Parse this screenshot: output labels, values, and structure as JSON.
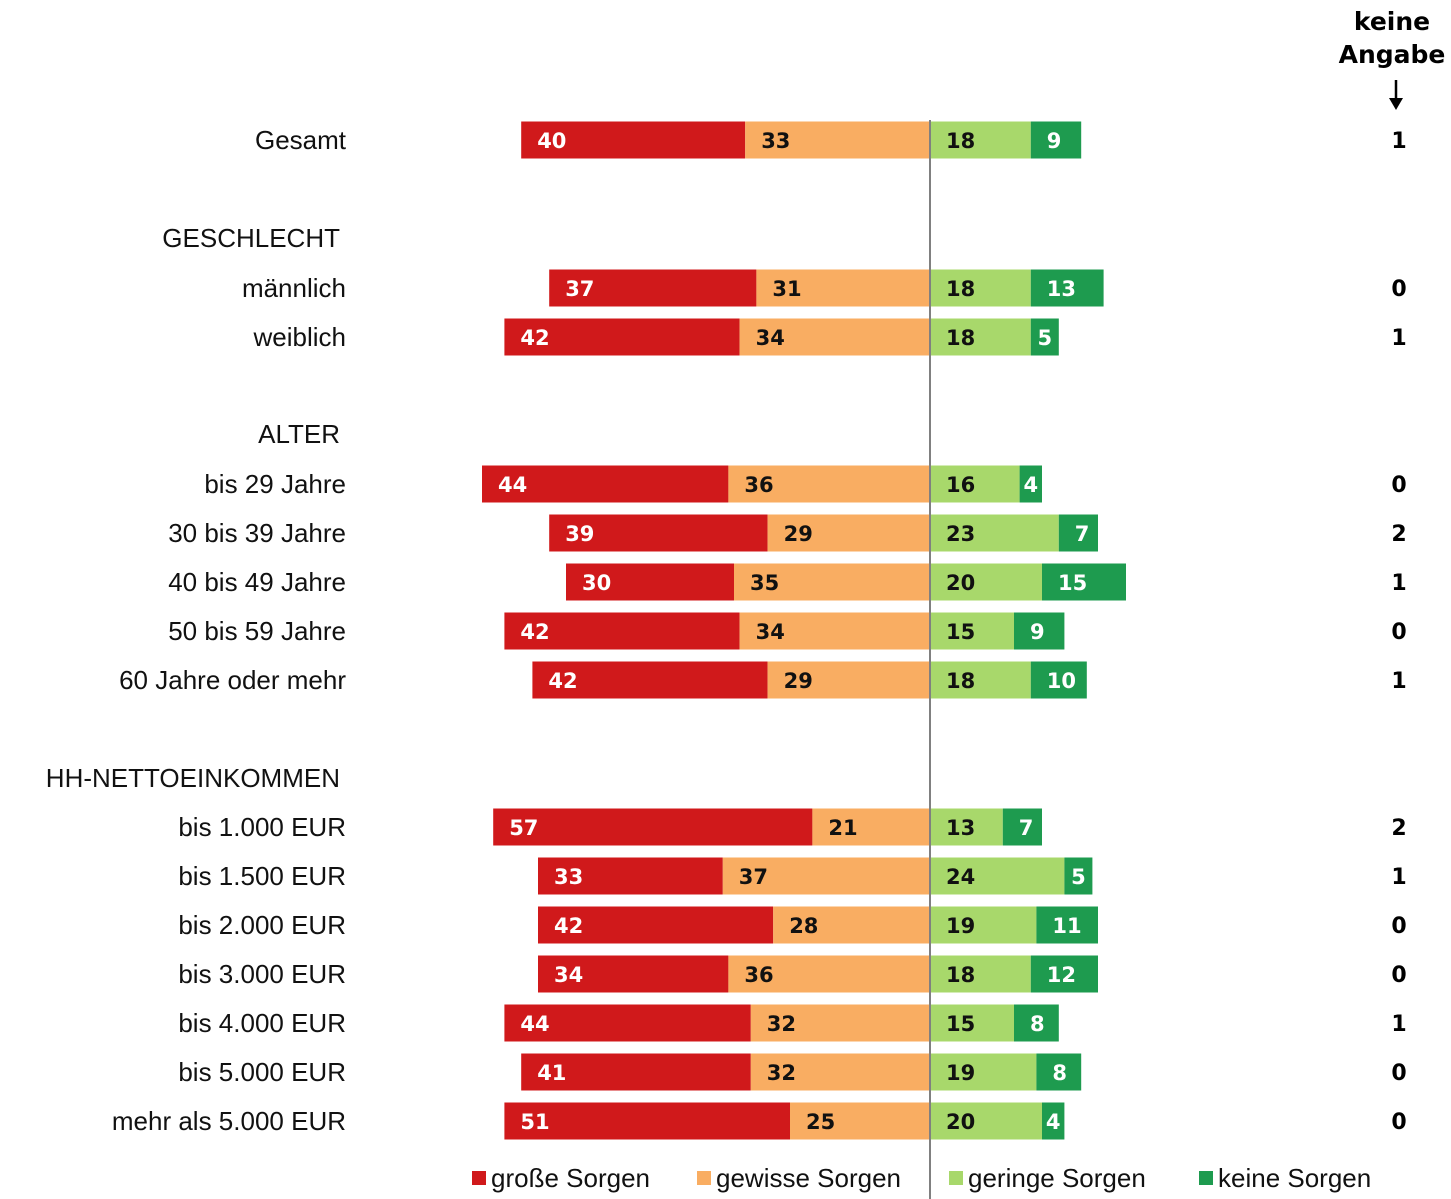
{
  "chart_data": {
    "type": "bar",
    "orientation": "horizontal",
    "stacked": true,
    "diverging": true,
    "na_header": [
      "keine",
      "Angabe"
    ],
    "colors": {
      "grosse": "#d0191b",
      "gewisse": "#f9ad62",
      "geringe": "#a8d86b",
      "keine": "#1e9b4f",
      "axis": "#808080"
    },
    "legend": [
      {
        "key": "grosse",
        "label": "große Sorgen"
      },
      {
        "key": "gewisse",
        "label": "gewisse Sorgen"
      },
      {
        "key": "geringe",
        "label": "geringe Sorgen"
      },
      {
        "key": "keine",
        "label": "keine Sorgen"
      }
    ],
    "rows": [
      {
        "kind": "data",
        "label": "Gesamt",
        "values": [
          40,
          33,
          18,
          9
        ],
        "na": 1
      },
      {
        "kind": "group",
        "label": "GESCHLECHT"
      },
      {
        "kind": "data",
        "label": "männlich",
        "values": [
          37,
          31,
          18,
          13
        ],
        "na": 0
      },
      {
        "kind": "data",
        "label": "weiblich",
        "values": [
          42,
          34,
          18,
          5
        ],
        "na": 1
      },
      {
        "kind": "group",
        "label": "ALTER"
      },
      {
        "kind": "data",
        "label": "bis 29 Jahre",
        "values": [
          44,
          36,
          16,
          4
        ],
        "na": 0
      },
      {
        "kind": "data",
        "label": "30 bis 39 Jahre",
        "values": [
          39,
          29,
          23,
          7
        ],
        "na": 2
      },
      {
        "kind": "data",
        "label": "40 bis 49 Jahre",
        "values": [
          30,
          35,
          20,
          15
        ],
        "na": 1
      },
      {
        "kind": "data",
        "label": "50 bis 59 Jahre",
        "values": [
          42,
          34,
          15,
          9
        ],
        "na": 0
      },
      {
        "kind": "data",
        "label": "60 Jahre oder mehr",
        "values": [
          42,
          29,
          18,
          10
        ],
        "na": 1
      },
      {
        "kind": "group",
        "label": "HH-NETTOEINKOMMEN"
      },
      {
        "kind": "data",
        "label": "bis 1.000 EUR",
        "values": [
          57,
          21,
          13,
          7
        ],
        "na": 2
      },
      {
        "kind": "data",
        "label": "bis 1.500 EUR",
        "values": [
          33,
          37,
          24,
          5
        ],
        "na": 1
      },
      {
        "kind": "data",
        "label": "bis 2.000 EUR",
        "values": [
          42,
          28,
          19,
          11
        ],
        "na": 0
      },
      {
        "kind": "data",
        "label": "bis 3.000 EUR",
        "values": [
          34,
          36,
          18,
          12
        ],
        "na": 0
      },
      {
        "kind": "data",
        "label": "bis 4.000 EUR",
        "values": [
          44,
          32,
          15,
          8
        ],
        "na": 1
      },
      {
        "kind": "data",
        "label": "bis 5.000 EUR",
        "values": [
          41,
          32,
          19,
          8
        ],
        "na": 0
      },
      {
        "kind": "data",
        "label": "mehr als 5.000 EUR",
        "values": [
          51,
          25,
          20,
          4
        ],
        "na": 0
      }
    ]
  }
}
